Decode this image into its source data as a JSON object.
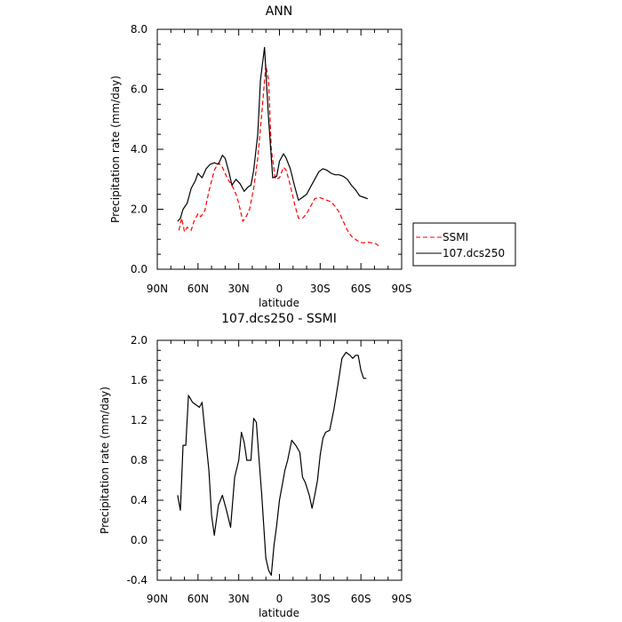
{
  "chart_data": [
    {
      "type": "line",
      "title": "ANN",
      "xlabel": "latitude",
      "ylabel": "Precipitation rate (mm/day)",
      "xlim": [
        -90,
        90
      ],
      "ylim": [
        0,
        8
      ],
      "xticks": [
        -90,
        -60,
        -30,
        0,
        30,
        60,
        90
      ],
      "xtick_labels": [
        "90N",
        "60N",
        "30N",
        "0",
        "30S",
        "60S",
        "90S"
      ],
      "yticks": [
        0,
        2,
        4,
        6,
        8
      ],
      "ytick_labels": [
        "0.0",
        "2.0",
        "4.0",
        "6.0",
        "8.0"
      ],
      "legend": "outside right",
      "series": [
        {
          "name": "SSMI",
          "color": "#ff0000",
          "dash": "dashed",
          "x": [
            -74,
            -72,
            -70,
            -68,
            -65,
            -63,
            -60,
            -58,
            -55,
            -52,
            -48,
            -45,
            -42,
            -38,
            -35,
            -32,
            -30,
            -27,
            -24,
            -22,
            -19,
            -16,
            -13,
            -10,
            -8,
            -6,
            -3,
            0,
            3,
            5,
            8,
            11,
            14,
            17,
            20,
            23,
            26,
            29,
            32,
            35,
            38,
            41,
            44,
            47,
            50,
            53,
            56,
            59,
            62,
            65,
            68,
            71,
            74
          ],
          "y": [
            1.3,
            1.7,
            1.25,
            1.4,
            1.3,
            1.6,
            1.85,
            1.75,
            1.95,
            2.6,
            3.3,
            3.55,
            3.4,
            3.0,
            2.8,
            2.5,
            2.2,
            1.6,
            1.8,
            2.0,
            2.7,
            3.7,
            5.2,
            6.8,
            6.3,
            4.0,
            3.0,
            3.05,
            3.4,
            3.3,
            2.8,
            2.2,
            1.7,
            1.7,
            1.85,
            2.1,
            2.35,
            2.4,
            2.35,
            2.3,
            2.25,
            2.1,
            1.9,
            1.6,
            1.3,
            1.1,
            1.0,
            0.9,
            0.88,
            0.9,
            0.88,
            0.85,
            0.75
          ]
        },
        {
          "name": "107.dcs250",
          "color": "#000000",
          "dash": "solid",
          "x": [
            -75,
            -73,
            -71,
            -68,
            -65,
            -62,
            -60,
            -57,
            -54,
            -51,
            -48,
            -45,
            -42,
            -40,
            -37,
            -35,
            -32,
            -29,
            -26,
            -23,
            -21,
            -19,
            -16,
            -14,
            -11,
            -8,
            -5,
            -2,
            0,
            3,
            5,
            8,
            11,
            14,
            17,
            20,
            23,
            26,
            29,
            32,
            35,
            38,
            41,
            44,
            47,
            50,
            53,
            56,
            59,
            62,
            65
          ],
          "y": [
            1.6,
            1.7,
            2.0,
            2.2,
            2.7,
            2.95,
            3.2,
            3.05,
            3.35,
            3.5,
            3.55,
            3.5,
            3.8,
            3.7,
            3.2,
            2.8,
            3.0,
            2.85,
            2.6,
            2.75,
            2.8,
            3.3,
            4.5,
            6.3,
            7.4,
            5.0,
            3.05,
            3.1,
            3.6,
            3.85,
            3.7,
            3.35,
            2.8,
            2.3,
            2.4,
            2.5,
            2.75,
            3.0,
            3.25,
            3.35,
            3.3,
            3.2,
            3.15,
            3.15,
            3.1,
            3.0,
            2.8,
            2.65,
            2.45,
            2.4,
            2.35
          ]
        }
      ]
    },
    {
      "type": "line",
      "title": "107.dcs250 - SSMI",
      "xlabel": "latitude",
      "ylabel": "Precipitation rate (mm/day)",
      "xlim": [
        -90,
        90
      ],
      "ylim": [
        -0.4,
        2.0
      ],
      "xticks": [
        -90,
        -60,
        -30,
        0,
        30,
        60,
        90
      ],
      "xtick_labels": [
        "90N",
        "60N",
        "30N",
        "0",
        "30S",
        "60S",
        "90S"
      ],
      "yticks": [
        -0.4,
        0.0,
        0.4,
        0.8,
        1.2,
        1.6,
        2.0
      ],
      "ytick_labels": [
        "-0.4",
        "0.0",
        "0.4",
        "0.8",
        "1.2",
        "1.6",
        "2.0"
      ],
      "series": [
        {
          "color": "#000000",
          "dash": "solid",
          "x": [
            -75,
            -73,
            -71,
            -69,
            -67,
            -64,
            -61,
            -59,
            -57,
            -55,
            -52,
            -50,
            -48,
            -45,
            -42,
            -39,
            -36,
            -33,
            -30,
            -28,
            -26,
            -24,
            -21,
            -19,
            -17,
            -15,
            -13,
            -10,
            -8,
            -6,
            -4,
            -2,
            0,
            2,
            4,
            6,
            9,
            12,
            15,
            17,
            19,
            22,
            24,
            26,
            28,
            30,
            32,
            34,
            37,
            40,
            43,
            46,
            49,
            52,
            54,
            56,
            58,
            60,
            62,
            64
          ],
          "y": [
            0.45,
            0.3,
            0.95,
            0.95,
            1.45,
            1.38,
            1.35,
            1.33,
            1.38,
            1.1,
            0.7,
            0.25,
            0.05,
            0.35,
            0.45,
            0.3,
            0.13,
            0.63,
            0.8,
            1.08,
            0.98,
            0.8,
            0.8,
            1.22,
            1.18,
            0.8,
            0.45,
            -0.18,
            -0.3,
            -0.35,
            -0.05,
            0.15,
            0.4,
            0.55,
            0.7,
            0.8,
            1.0,
            0.95,
            0.88,
            0.63,
            0.58,
            0.45,
            0.32,
            0.45,
            0.6,
            0.85,
            1.02,
            1.08,
            1.1,
            1.3,
            1.55,
            1.82,
            1.88,
            1.85,
            1.82,
            1.85,
            1.85,
            1.7,
            1.62,
            1.62
          ]
        }
      ]
    }
  ]
}
